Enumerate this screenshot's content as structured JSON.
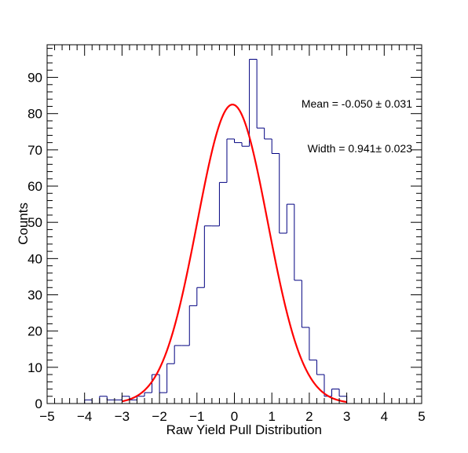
{
  "chart_data": {
    "type": "histogram",
    "xlabel": "Raw Yield Pull Distribution",
    "ylabel": "Counts",
    "xlim": [
      -5,
      5
    ],
    "ylim": [
      0,
      99
    ],
    "x_ticks": [
      "−5",
      "−4",
      "−3",
      "−2",
      "−1",
      "0",
      "1",
      "2",
      "3",
      "4",
      "5"
    ],
    "y_ticks": [
      "0",
      "10",
      "20",
      "30",
      "40",
      "50",
      "60",
      "70",
      "80",
      "90"
    ],
    "bin_width": 0.2,
    "bin_edges_start": -5,
    "histogram_values": [
      0,
      0,
      0,
      0,
      0,
      1,
      0,
      2,
      1,
      1,
      2,
      1,
      2,
      3,
      8,
      3,
      11,
      16,
      16,
      27,
      32,
      49,
      49,
      61,
      73,
      72,
      71,
      95,
      76,
      73,
      69,
      47,
      55,
      34,
      21,
      12,
      8,
      2,
      4,
      2,
      0,
      0,
      0,
      0,
      0,
      0,
      0,
      0,
      0,
      0
    ],
    "fit": {
      "type": "gaussian",
      "amplitude": 82.5,
      "mean": -0.05,
      "sigma": 0.941,
      "x_range": [
        -3,
        3
      ]
    },
    "annotations": {
      "mean": "Mean = -0.050 ± 0.031",
      "width": "Width = 0.941± 0.023"
    },
    "colors": {
      "histogram": "#000080",
      "fit": "#ff0000",
      "frame": "#000000"
    }
  }
}
